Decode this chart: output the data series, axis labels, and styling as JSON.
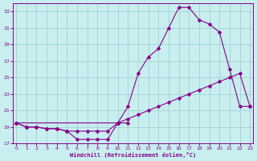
{
  "xlabel": "Windchill (Refroidissement éolien,°C)",
  "bg_color": "#c8eef0",
  "grid_color": "#99cccc",
  "line_color": "#880088",
  "xlim": [
    -0.3,
    23.3
  ],
  "ylim": [
    17,
    34
  ],
  "yticks": [
    17,
    19,
    21,
    23,
    25,
    27,
    29,
    31,
    33
  ],
  "xticks": [
    0,
    1,
    2,
    3,
    4,
    5,
    6,
    7,
    8,
    9,
    10,
    11,
    12,
    13,
    14,
    15,
    16,
    17,
    18,
    19,
    20,
    21,
    22,
    23
  ],
  "s1_x": [
    0,
    1,
    2,
    3,
    4,
    5,
    6,
    7,
    8,
    9,
    10,
    11
  ],
  "s1_y": [
    19.5,
    19.0,
    19.0,
    18.8,
    18.8,
    18.5,
    17.5,
    17.5,
    17.5,
    17.5,
    19.5,
    19.5
  ],
  "s2_x": [
    0,
    1,
    2,
    3,
    4,
    5,
    6,
    7,
    8,
    9,
    10,
    11,
    12,
    13,
    14,
    15,
    16,
    17,
    18,
    19,
    20,
    21,
    22,
    23
  ],
  "s2_y": [
    19.5,
    19.0,
    19.0,
    18.8,
    18.8,
    18.5,
    18.5,
    18.5,
    18.5,
    18.5,
    19.5,
    20.0,
    20.5,
    21.0,
    21.5,
    22.0,
    22.5,
    23.0,
    23.5,
    24.0,
    24.5,
    25.0,
    25.5,
    21.5
  ],
  "s3_x": [
    0,
    10,
    11,
    12,
    13,
    14,
    15,
    16,
    17,
    18,
    19,
    20,
    21,
    22,
    23
  ],
  "s3_y": [
    19.5,
    19.5,
    21.5,
    25.5,
    27.5,
    28.5,
    31.0,
    33.5,
    33.5,
    32.0,
    31.5,
    30.5,
    26.0,
    21.5,
    21.5
  ]
}
